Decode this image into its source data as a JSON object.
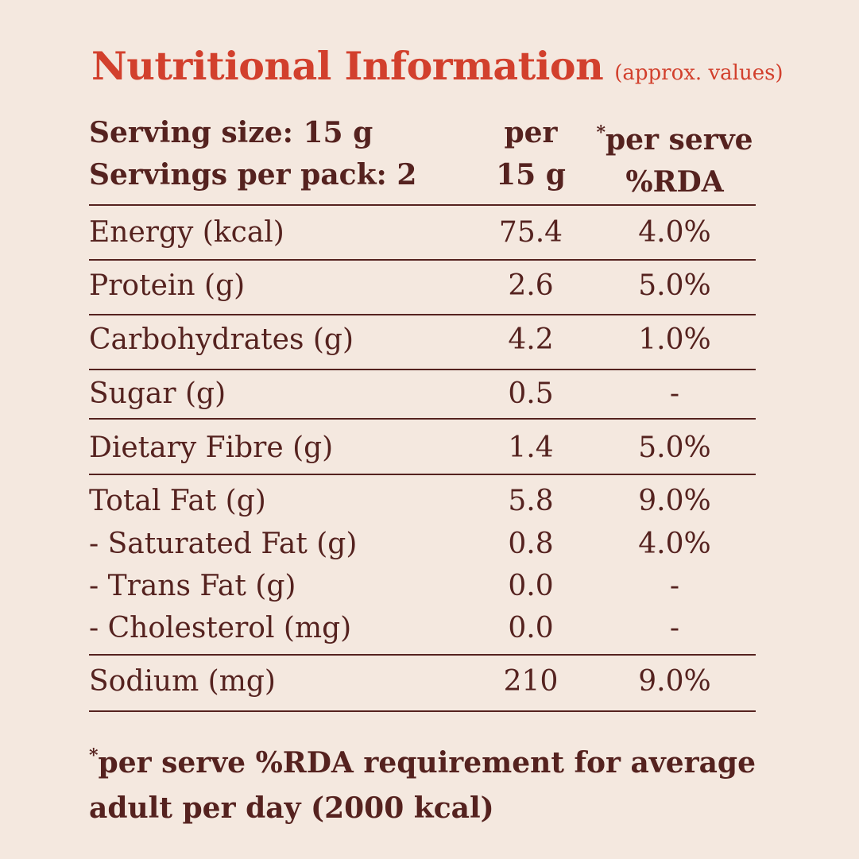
{
  "title": {
    "main": "Nutritional Information",
    "sub": "(approx. values)"
  },
  "header": {
    "serving_size": "Serving size: 15 g",
    "servings_per_pack": "Servings per pack: 2",
    "per_line1": "per",
    "per_line2": "15 g",
    "rda_asterisk": "*",
    "rda_line1": "per serve",
    "rda_line2": "%RDA"
  },
  "rows": [
    {
      "name": "Energy (kcal)",
      "per15g": "75.4",
      "rda": "4.0%"
    },
    {
      "name": "Protein (g)",
      "per15g": "2.6",
      "rda": "5.0%"
    },
    {
      "name": "Carbohydrates (g)",
      "per15g": "4.2",
      "rda": "1.0%"
    },
    {
      "name": "Sugar (g)",
      "per15g": "0.5",
      "rda": "-"
    },
    {
      "name": "Dietary Fibre (g)",
      "per15g": "1.4",
      "rda": "5.0%"
    },
    {
      "name": "Total Fat (g)",
      "per15g": "5.8",
      "rda": "9.0%"
    },
    {
      "name": "- Saturated Fat (g)",
      "per15g": "0.8",
      "rda": "4.0%"
    },
    {
      "name": "- Trans Fat (g)",
      "per15g": "0.0",
      "rda": "-"
    },
    {
      "name": "- Cholesterol (mg)",
      "per15g": "0.0",
      "rda": "-"
    },
    {
      "name": "Sodium (mg)",
      "per15g": "210",
      "rda": "9.0%"
    }
  ],
  "footnote": {
    "asterisk": "*",
    "line1": "per serve %RDA requirement for average",
    "line2": "adult per day (2000 kcal)"
  },
  "colors": {
    "background": "#f4e8df",
    "text": "#55221f",
    "accent": "#d2402d"
  }
}
